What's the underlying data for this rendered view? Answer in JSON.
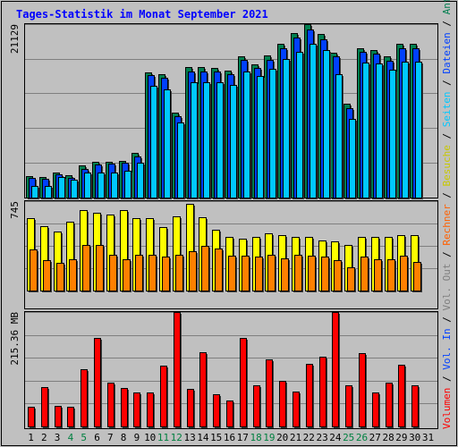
{
  "title": "Tages-Statistik im Monat September 2021",
  "colors": {
    "background": "#c0c0c0",
    "title": "#0000ff",
    "anfragen": "#007f50",
    "dateien": "#0040ff",
    "seiten": "#00c8ff",
    "besuche": "#ffff00",
    "rechner": "#ff8000",
    "volumen": "#ff0000",
    "weekend_label": "#008040",
    "weekday_label": "#000000",
    "separator": "#7f7f7f"
  },
  "right_label": {
    "top": [
      {
        "text": "Anfragen",
        "color": "#007f50"
      },
      {
        "text": " / ",
        "color": "#000000"
      },
      {
        "text": "Dateien",
        "color": "#0040ff"
      },
      {
        "text": " / ",
        "color": "#000000"
      },
      {
        "text": "Seiten",
        "color": "#00c8ff"
      }
    ],
    "middle": [
      {
        "text": " / ",
        "color": "#000000"
      },
      {
        "text": "Besuche",
        "color": "#c8c800"
      },
      {
        "text": " / ",
        "color": "#000000"
      },
      {
        "text": "Rechner",
        "color": "#ff6000"
      }
    ],
    "bottom": [
      {
        "text": " / ",
        "color": "#000000"
      },
      {
        "text": "Vol. Out",
        "color": "#7f7f7f"
      },
      {
        "text": " / ",
        "color": "#000000"
      },
      {
        "text": "Vol. In",
        "color": "#0040ff"
      },
      {
        "text": " / ",
        "color": "#000000"
      },
      {
        "text": "Volumen",
        "color": "#ff0000"
      }
    ]
  },
  "chart_data": [
    {
      "type": "bar",
      "panel": "top",
      "ymax_label": "21129",
      "ylim": [
        0,
        21129
      ],
      "categories": [
        "1",
        "2",
        "3",
        "4",
        "5",
        "6",
        "7",
        "8",
        "9",
        "10",
        "11",
        "12",
        "13",
        "14",
        "15",
        "16",
        "17",
        "18",
        "19",
        "20",
        "21",
        "22",
        "23",
        "24",
        "25",
        "26",
        "27",
        "28",
        "29",
        "30",
        "31"
      ],
      "weekend_days": [
        4,
        5,
        11,
        12,
        18,
        19,
        25,
        26
      ],
      "series": [
        {
          "name": "Anfragen",
          "values": [
            2600,
            2500,
            3000,
            2700,
            3900,
            4400,
            4400,
            4500,
            5400,
            15300,
            15000,
            10400,
            15900,
            15900,
            15800,
            15500,
            17200,
            16200,
            17300,
            18700,
            20000,
            21100,
            19900,
            17600,
            11400,
            18200,
            18000,
            17200,
            18700,
            18700,
            null
          ]
        },
        {
          "name": "Dateien",
          "values": [
            2400,
            2300,
            2800,
            2400,
            3500,
            4000,
            4100,
            4200,
            5000,
            14900,
            14600,
            9900,
            15400,
            15400,
            15400,
            15000,
            16800,
            15800,
            16800,
            18200,
            19500,
            20500,
            19300,
            17200,
            10900,
            17800,
            17500,
            16700,
            18200,
            18200,
            null
          ]
        },
        {
          "name": "Seiten",
          "values": [
            1400,
            1400,
            2500,
            2200,
            3100,
            3100,
            3100,
            3300,
            4300,
            13600,
            13200,
            9100,
            14100,
            14100,
            14100,
            13700,
            15400,
            14800,
            15700,
            16900,
            17700,
            18700,
            18000,
            15000,
            9600,
            16500,
            16300,
            15600,
            16600,
            16600,
            null
          ]
        }
      ]
    },
    {
      "type": "bar",
      "panel": "middle",
      "ymax_label": "745",
      "ylim": [
        0,
        745
      ],
      "categories": [
        "1",
        "2",
        "3",
        "4",
        "5",
        "6",
        "7",
        "8",
        "9",
        "10",
        "11",
        "12",
        "13",
        "14",
        "15",
        "16",
        "17",
        "18",
        "19",
        "20",
        "21",
        "22",
        "23",
        "24",
        "25",
        "26",
        "27",
        "28",
        "29",
        "30",
        "31"
      ],
      "series": [
        {
          "name": "Besuche",
          "values": [
            600,
            540,
            490,
            570,
            670,
            650,
            630,
            670,
            600,
            600,
            530,
            620,
            720,
            610,
            510,
            450,
            430,
            450,
            480,
            460,
            450,
            450,
            420,
            410,
            380,
            450,
            450,
            450,
            460,
            460,
            null
          ]
        },
        {
          "name": "Rechner",
          "values": [
            340,
            250,
            230,
            260,
            380,
            380,
            300,
            260,
            300,
            300,
            280,
            300,
            330,
            370,
            350,
            290,
            290,
            280,
            300,
            270,
            300,
            290,
            280,
            250,
            190,
            280,
            260,
            260,
            290,
            240,
            null
          ]
        }
      ]
    },
    {
      "type": "bar",
      "panel": "bottom",
      "ymax_label": "215.36 MB",
      "ylim": [
        0,
        215.36
      ],
      "categories": [
        "1",
        "2",
        "3",
        "4",
        "5",
        "6",
        "7",
        "8",
        "9",
        "10",
        "11",
        "12",
        "13",
        "14",
        "15",
        "16",
        "17",
        "18",
        "19",
        "20",
        "21",
        "22",
        "23",
        "24",
        "25",
        "26",
        "27",
        "28",
        "29",
        "30",
        "31"
      ],
      "series": [
        {
          "name": "Volumen",
          "values": [
            37,
            74,
            39,
            37,
            108,
            167,
            82,
            72,
            64,
            64,
            114,
            217,
            70,
            140,
            60,
            48,
            167,
            78,
            126,
            85,
            65,
            117,
            131,
            218,
            78,
            138,
            64,
            82,
            116,
            78,
            null
          ]
        }
      ]
    }
  ],
  "ytick_labels": {
    "top": "21129",
    "middle": "745",
    "bottom": "215.36 MB"
  }
}
